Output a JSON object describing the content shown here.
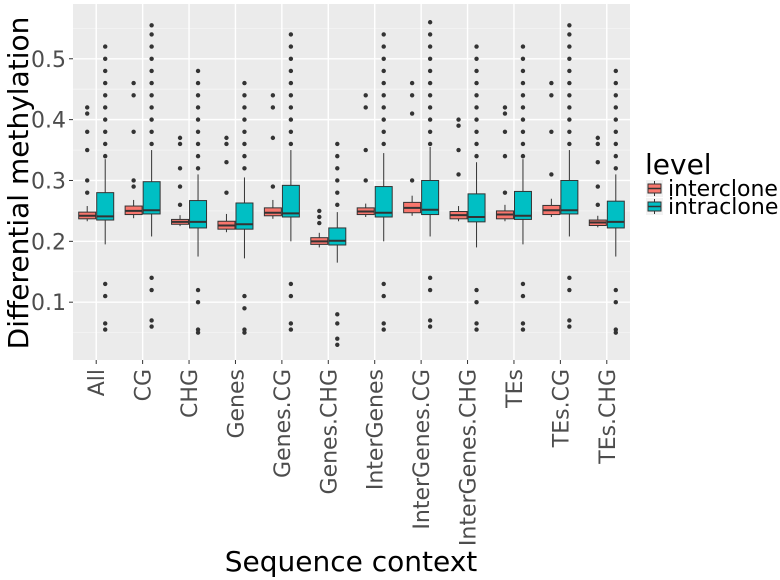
{
  "chart_data": {
    "type": "boxplot",
    "xlabel": "Sequence context",
    "ylabel": "Differential methylation",
    "ylim": [
      0.005,
      0.59
    ],
    "yticks": [
      0.1,
      0.2,
      0.3,
      0.4,
      0.5
    ],
    "yticks_labels": [
      "0.1",
      "0.2",
      "0.3",
      "0.4",
      "0.5"
    ],
    "grid": true,
    "legend": {
      "title": "level",
      "position": "right"
    },
    "categories": [
      "All",
      "CG",
      "CHG",
      "Genes",
      "Genes.CG",
      "Genes.CHG",
      "InterGenes",
      "InterGenes.CG",
      "InterGenes.CHG",
      "TEs",
      "TEs.CG",
      "TEs.CHG"
    ],
    "series": [
      {
        "name": "interclone",
        "color": "#F8766D",
        "boxes": [
          {
            "min": 0.233,
            "q1": 0.237,
            "median": 0.242,
            "q3": 0.248,
            "max": 0.258,
            "outliers": [
              0.28,
              0.3,
              0.35,
              0.38,
              0.41,
              0.42
            ]
          },
          {
            "min": 0.238,
            "q1": 0.244,
            "median": 0.25,
            "q3": 0.258,
            "max": 0.268,
            "outliers": [
              0.29,
              0.3,
              0.38,
              0.44,
              0.46
            ]
          },
          {
            "min": 0.225,
            "q1": 0.228,
            "median": 0.232,
            "q3": 0.236,
            "max": 0.243,
            "outliers": [
              0.26,
              0.29,
              0.32,
              0.36,
              0.37
            ]
          },
          {
            "min": 0.215,
            "q1": 0.22,
            "median": 0.226,
            "q3": 0.233,
            "max": 0.245,
            "outliers": [
              0.28,
              0.33,
              0.36,
              0.37
            ]
          },
          {
            "min": 0.237,
            "q1": 0.242,
            "median": 0.247,
            "q3": 0.255,
            "max": 0.268,
            "outliers": [
              0.29,
              0.37,
              0.42,
              0.44
            ]
          },
          {
            "min": 0.19,
            "q1": 0.195,
            "median": 0.2,
            "q3": 0.206,
            "max": 0.214,
            "outliers": [
              0.23,
              0.24,
              0.25
            ]
          },
          {
            "min": 0.24,
            "q1": 0.244,
            "median": 0.249,
            "q3": 0.255,
            "max": 0.262,
            "outliers": [
              0.3,
              0.35,
              0.42,
              0.44
            ]
          },
          {
            "min": 0.242,
            "q1": 0.247,
            "median": 0.255,
            "q3": 0.264,
            "max": 0.275,
            "outliers": [
              0.3,
              0.41,
              0.44,
              0.46
            ]
          },
          {
            "min": 0.233,
            "q1": 0.237,
            "median": 0.243,
            "q3": 0.249,
            "max": 0.258,
            "outliers": [
              0.31,
              0.35,
              0.39,
              0.4
            ]
          },
          {
            "min": 0.233,
            "q1": 0.237,
            "median": 0.244,
            "q3": 0.25,
            "max": 0.26,
            "outliers": [
              0.28,
              0.34,
              0.38,
              0.41,
              0.42
            ]
          },
          {
            "min": 0.24,
            "q1": 0.244,
            "median": 0.251,
            "q3": 0.259,
            "max": 0.27,
            "outliers": [
              0.31,
              0.38,
              0.44,
              0.46
            ]
          },
          {
            "min": 0.223,
            "q1": 0.226,
            "median": 0.231,
            "q3": 0.235,
            "max": 0.242,
            "outliers": [
              0.26,
              0.29,
              0.33,
              0.36,
              0.37
            ]
          }
        ]
      },
      {
        "name": "intraclone",
        "color": "#00BFC4",
        "boxes": [
          {
            "min": 0.195,
            "q1": 0.235,
            "median": 0.241,
            "q3": 0.28,
            "max": 0.335,
            "outliers": [
              0.34,
              0.36,
              0.38,
              0.4,
              0.42,
              0.44,
              0.46,
              0.48,
              0.5,
              0.52,
              0.13,
              0.11,
              0.065,
              0.055
            ]
          },
          {
            "min": 0.208,
            "q1": 0.245,
            "median": 0.251,
            "q3": 0.298,
            "max": 0.35,
            "outliers": [
              0.36,
              0.38,
              0.4,
              0.42,
              0.44,
              0.46,
              0.48,
              0.5,
              0.52,
              0.54,
              0.555,
              0.14,
              0.12,
              0.07,
              0.06
            ]
          },
          {
            "min": 0.175,
            "q1": 0.222,
            "median": 0.232,
            "q3": 0.267,
            "max": 0.31,
            "outliers": [
              0.32,
              0.34,
              0.36,
              0.38,
              0.4,
              0.42,
              0.44,
              0.46,
              0.48,
              0.12,
              0.1,
              0.055,
              0.05
            ]
          },
          {
            "min": 0.172,
            "q1": 0.22,
            "median": 0.228,
            "q3": 0.263,
            "max": 0.305,
            "outliers": [
              0.32,
              0.34,
              0.36,
              0.38,
              0.4,
              0.42,
              0.44,
              0.46,
              0.11,
              0.09,
              0.055,
              0.05
            ]
          },
          {
            "min": 0.2,
            "q1": 0.24,
            "median": 0.246,
            "q3": 0.292,
            "max": 0.35,
            "outliers": [
              0.36,
              0.38,
              0.4,
              0.42,
              0.44,
              0.46,
              0.48,
              0.5,
              0.52,
              0.54,
              0.13,
              0.11,
              0.065,
              0.055
            ]
          },
          {
            "min": 0.165,
            "q1": 0.194,
            "median": 0.201,
            "q3": 0.222,
            "max": 0.248,
            "outliers": [
              0.26,
              0.28,
              0.3,
              0.32,
              0.34,
              0.36,
              0.08,
              0.065,
              0.04,
              0.03
            ]
          },
          {
            "min": 0.2,
            "q1": 0.24,
            "median": 0.247,
            "q3": 0.29,
            "max": 0.345,
            "outliers": [
              0.36,
              0.38,
              0.4,
              0.42,
              0.44,
              0.46,
              0.48,
              0.5,
              0.52,
              0.54,
              0.13,
              0.11,
              0.065,
              0.055
            ]
          },
          {
            "min": 0.208,
            "q1": 0.244,
            "median": 0.252,
            "q3": 0.3,
            "max": 0.355,
            "outliers": [
              0.36,
              0.38,
              0.4,
              0.42,
              0.44,
              0.46,
              0.48,
              0.5,
              0.52,
              0.54,
              0.56,
              0.14,
              0.12,
              0.07,
              0.06
            ]
          },
          {
            "min": 0.19,
            "q1": 0.232,
            "median": 0.24,
            "q3": 0.278,
            "max": 0.33,
            "outliers": [
              0.34,
              0.36,
              0.38,
              0.4,
              0.42,
              0.44,
              0.46,
              0.48,
              0.5,
              0.52,
              0.12,
              0.1,
              0.065,
              0.055
            ]
          },
          {
            "min": 0.195,
            "q1": 0.236,
            "median": 0.242,
            "q3": 0.282,
            "max": 0.335,
            "outliers": [
              0.34,
              0.36,
              0.38,
              0.4,
              0.42,
              0.44,
              0.46,
              0.48,
              0.5,
              0.52,
              0.13,
              0.11,
              0.065,
              0.055
            ]
          },
          {
            "min": 0.208,
            "q1": 0.245,
            "median": 0.251,
            "q3": 0.3,
            "max": 0.35,
            "outliers": [
              0.36,
              0.38,
              0.4,
              0.42,
              0.44,
              0.46,
              0.48,
              0.5,
              0.52,
              0.54,
              0.555,
              0.14,
              0.12,
              0.07,
              0.06
            ]
          },
          {
            "min": 0.175,
            "q1": 0.222,
            "median": 0.232,
            "q3": 0.266,
            "max": 0.31,
            "outliers": [
              0.32,
              0.34,
              0.36,
              0.38,
              0.4,
              0.42,
              0.44,
              0.46,
              0.48,
              0.12,
              0.1,
              0.055,
              0.05
            ]
          }
        ]
      }
    ]
  }
}
